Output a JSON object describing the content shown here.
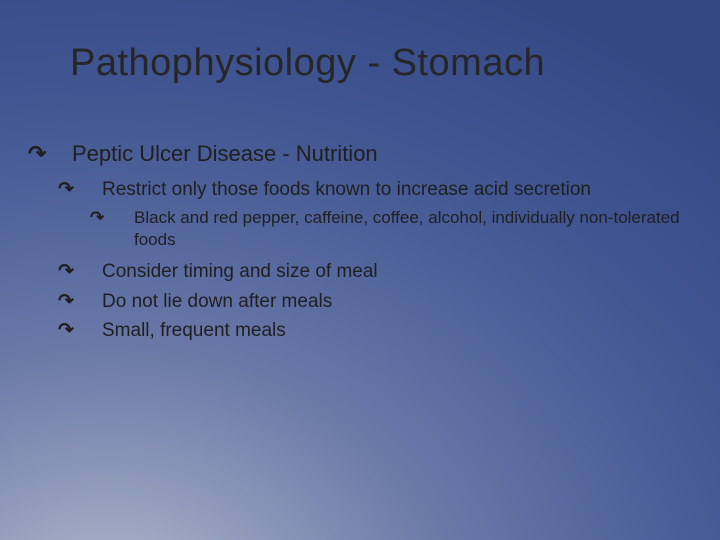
{
  "title": "Pathophysiology - Stomach",
  "bullet_glyph": "↷",
  "colors": {
    "text": "#1f1f1f",
    "title": "#262626",
    "bg_inner": "#b8bfd0",
    "bg_outer": "#344884"
  },
  "fontsizes": {
    "title": 38,
    "lvl1": 22,
    "lvl2": 19,
    "lvl3": 17
  },
  "items": [
    {
      "level": 1,
      "text": "Peptic Ulcer Disease - Nutrition"
    },
    {
      "level": 2,
      "text": "Restrict only those foods known to increase acid secretion"
    },
    {
      "level": 3,
      "text": "Black and red pepper, caffeine, coffee, alcohol, individually non-tolerated foods"
    },
    {
      "level": 2,
      "text": "Consider timing and size of meal"
    },
    {
      "level": 2,
      "text": "Do not lie down after meals"
    },
    {
      "level": 2,
      "text": "Small, frequent meals"
    }
  ]
}
